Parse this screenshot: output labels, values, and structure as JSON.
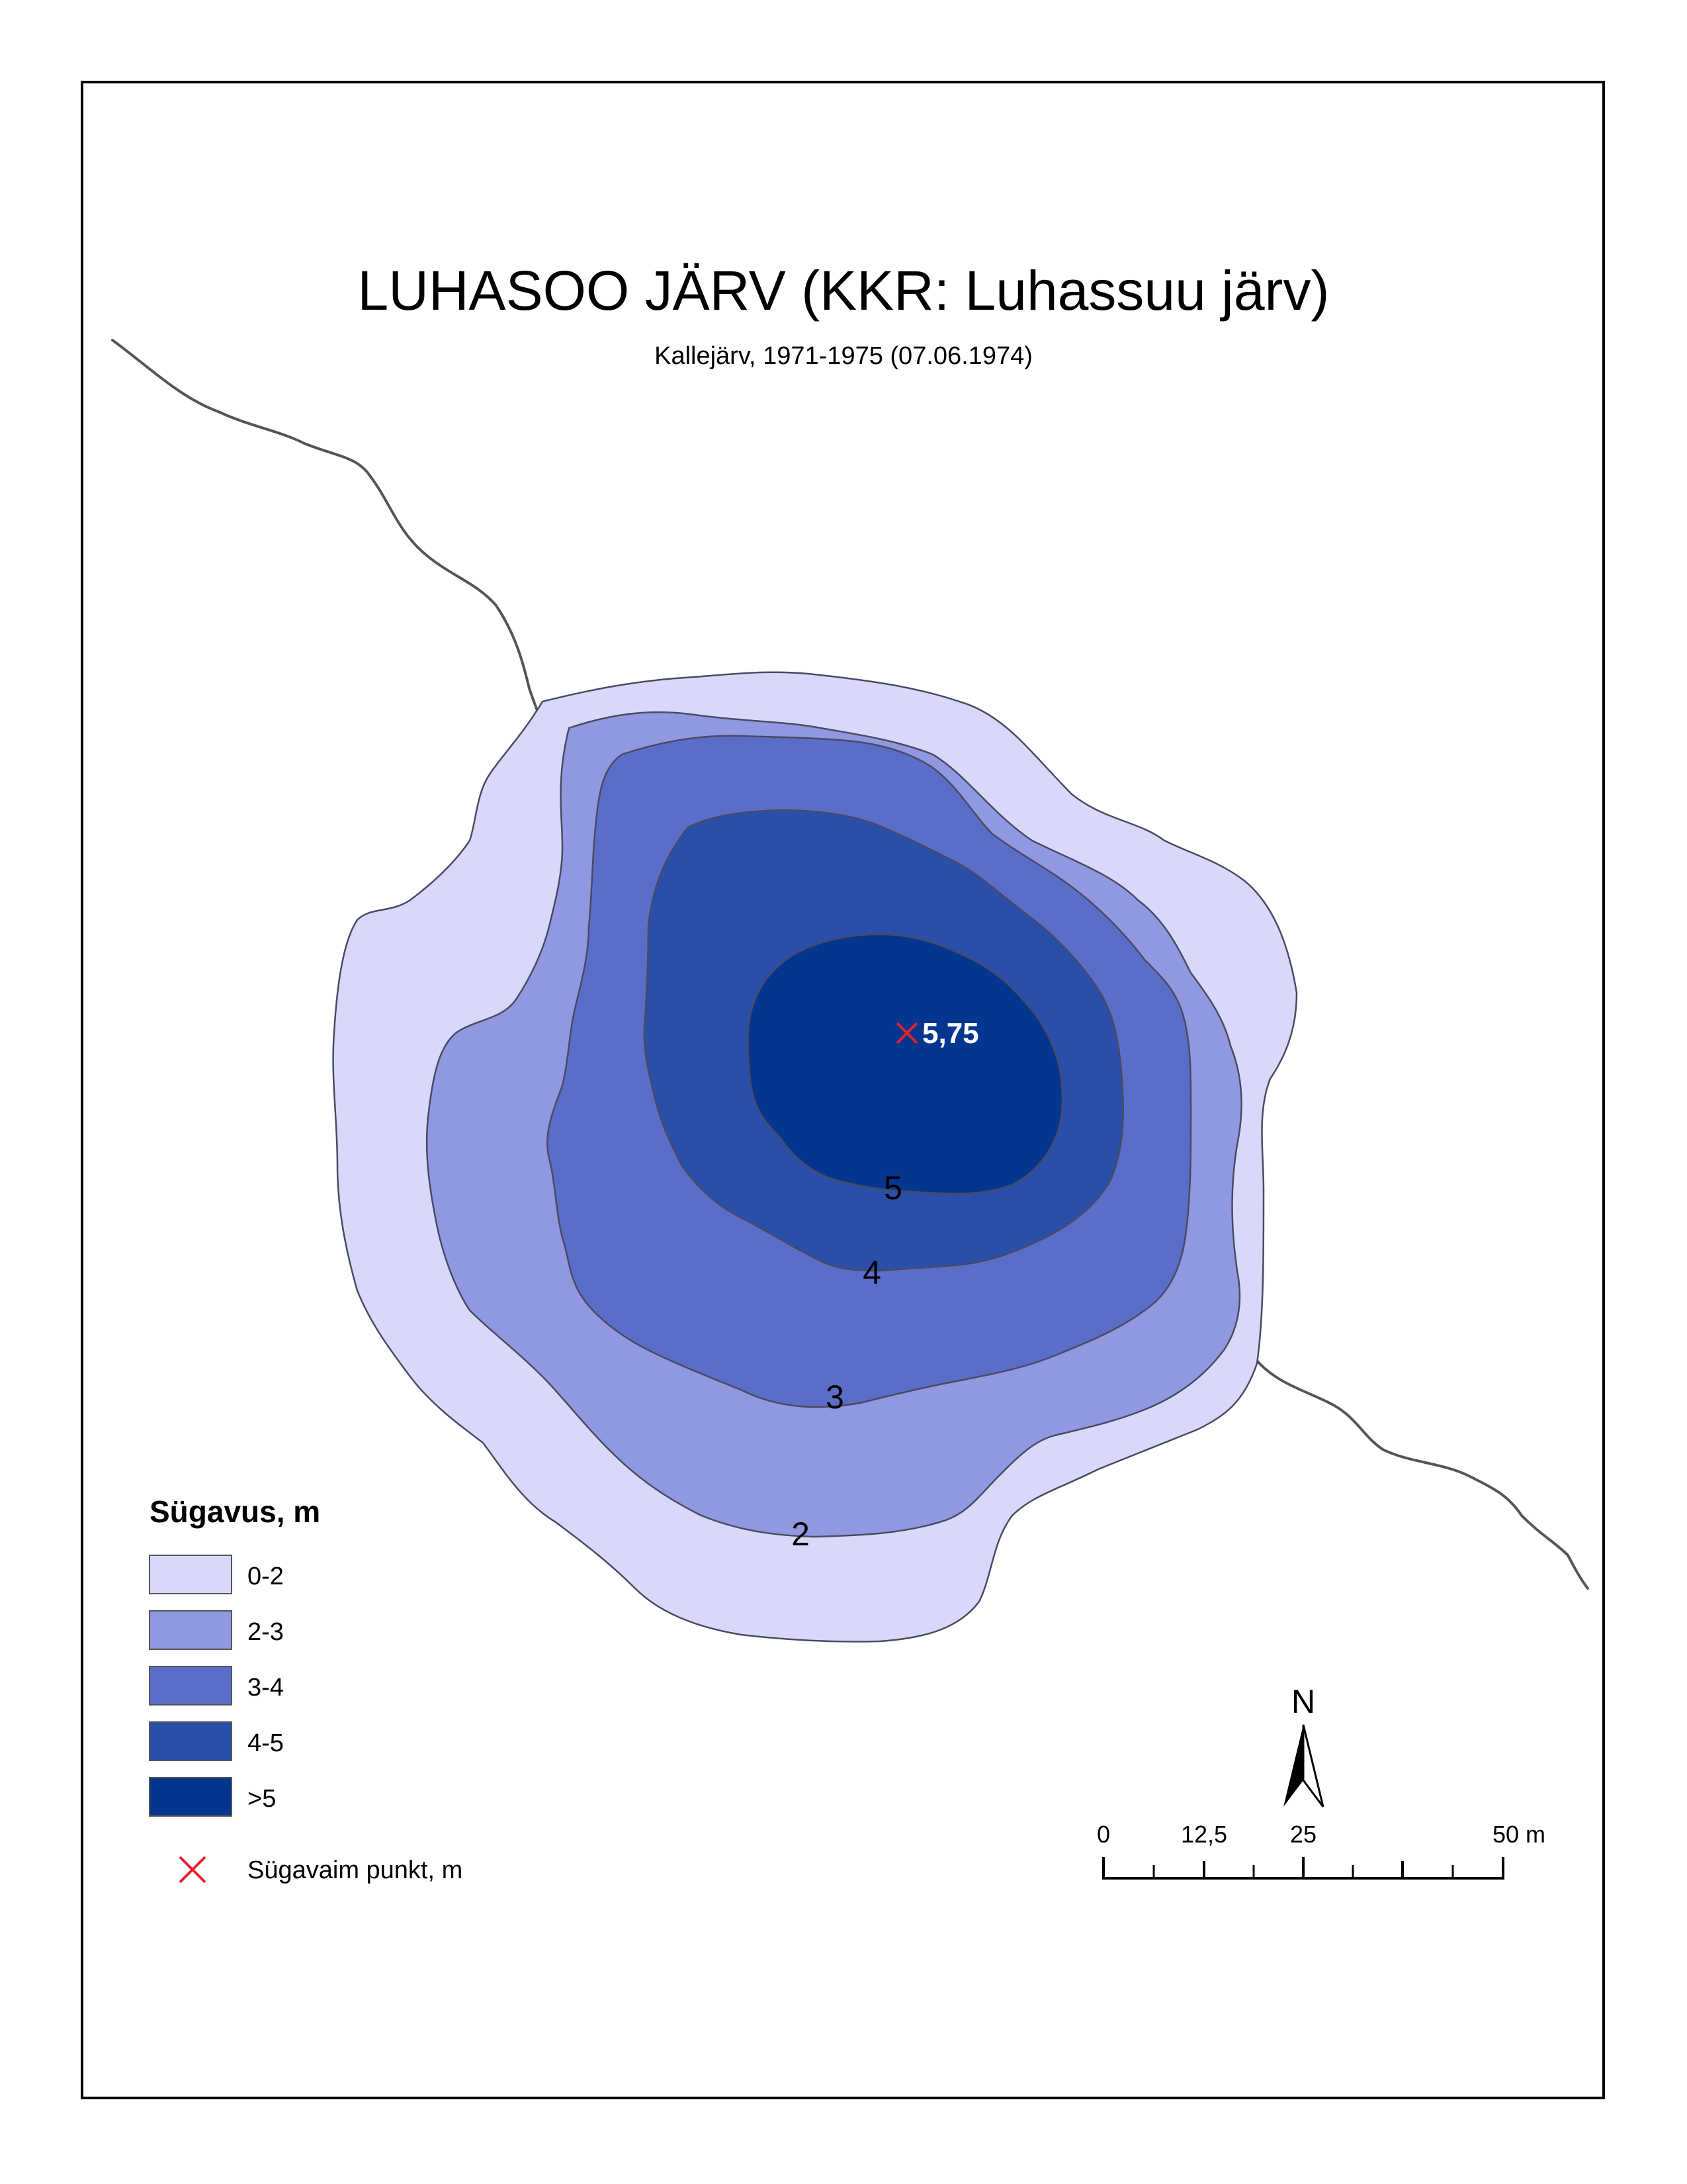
{
  "title": "LUHASOO JÄRV (KKR: Luhassuu järv)",
  "subtitle": "Kallejärv, 1971-1975 (07.06.1974)",
  "colors": {
    "zone_0_2": "#d8d8fb",
    "zone_2_3": "#8f98e1",
    "zone_3_4": "#5a6ec9",
    "zone_4_5": "#2a4fab",
    "zone_gt5": "#043690",
    "deepest_marker": "#e8202a",
    "stream": "#555555"
  },
  "contour_labels": [
    "2",
    "3",
    "4",
    "5"
  ],
  "deepest_point": {
    "value": "5,75",
    "marker": "cross-mark"
  },
  "legend": {
    "title": "Sügavus, m",
    "items": [
      {
        "label": "0-2",
        "color": "#d8d8fb"
      },
      {
        "label": "2-3",
        "color": "#8f98e1"
      },
      {
        "label": "3-4",
        "color": "#5a6ec9"
      },
      {
        "label": "4-5",
        "color": "#2a4fab"
      },
      {
        "label": ">5",
        "color": "#043690"
      }
    ],
    "deepest_label": "Sügavaim punkt, m"
  },
  "north_arrow": {
    "label": "N"
  },
  "scale_bar": {
    "labels": [
      "0",
      "12,5",
      "25",
      "50 m"
    ]
  }
}
